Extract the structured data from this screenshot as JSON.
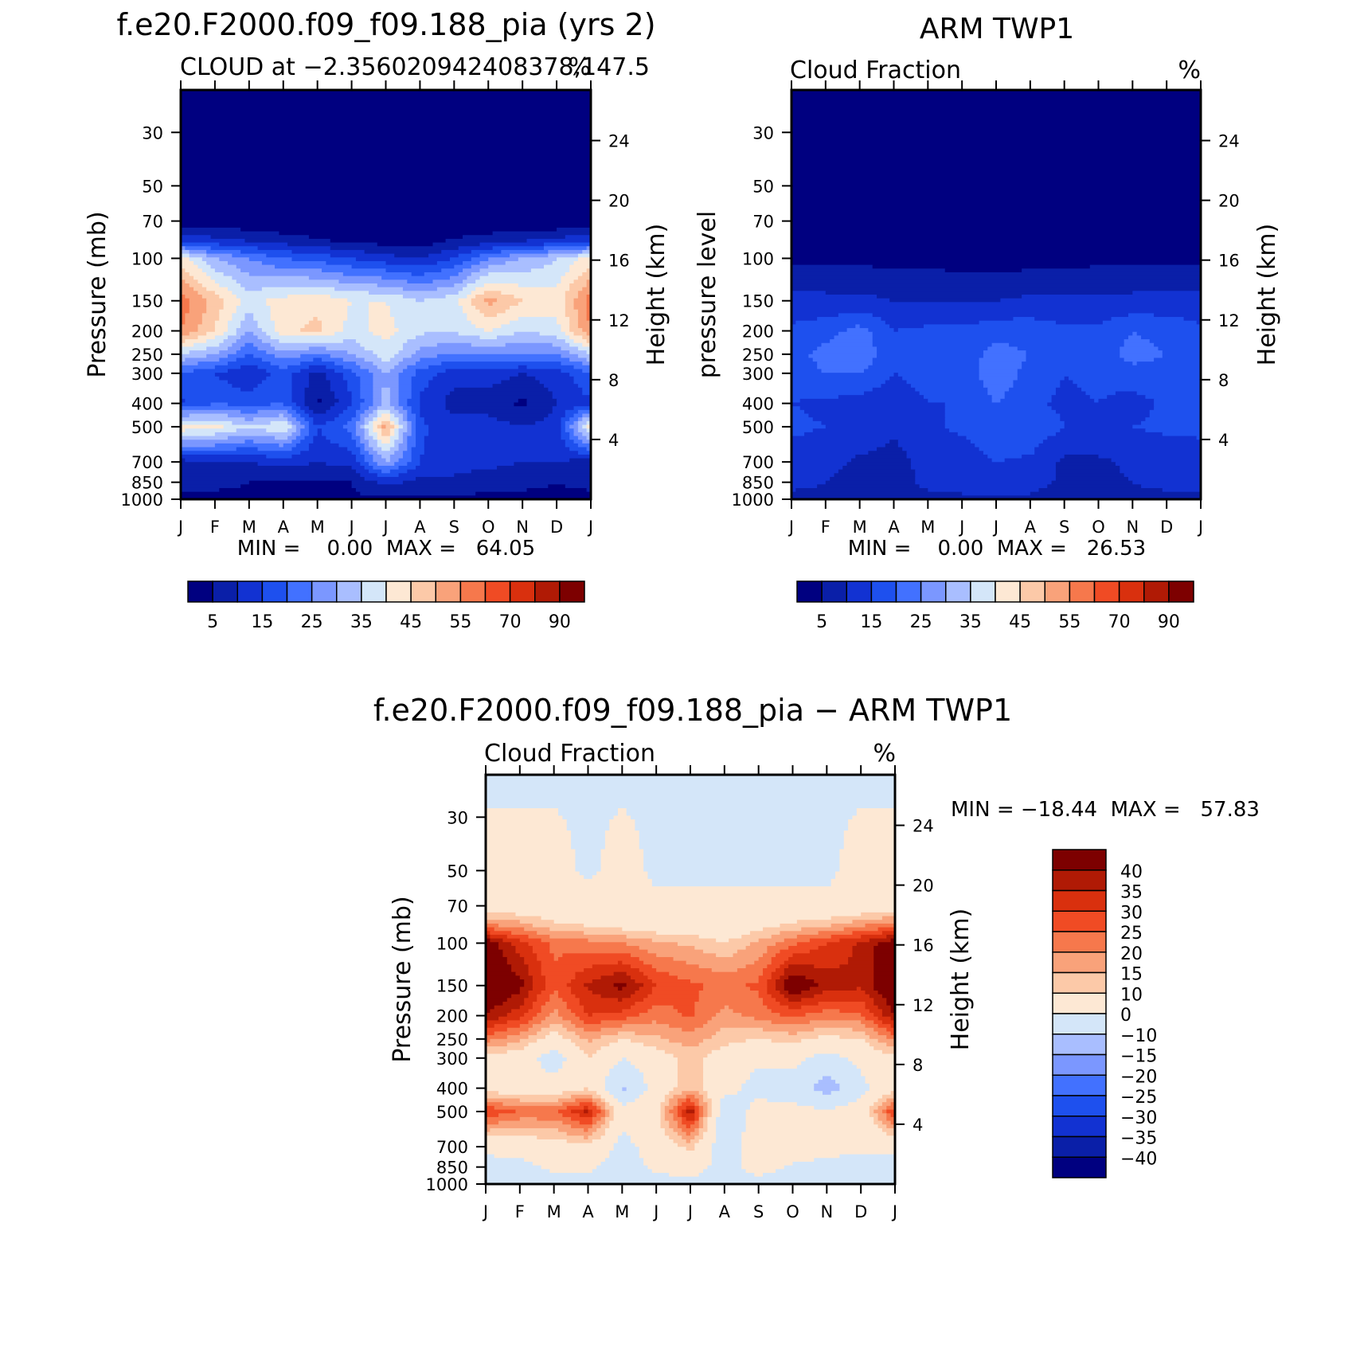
{
  "colors": {
    "seq": [
      "#000080",
      "#0a1fa8",
      "#1232d2",
      "#1e50ee",
      "#4271ff",
      "#7b97ff",
      "#a9beff",
      "#d4e6f9",
      "#fde8d4",
      "#fcc9a8",
      "#f9a27a",
      "#f6784c",
      "#f04b24",
      "#d9300e",
      "#b01a05",
      "#7d0000"
    ],
    "diff": [
      "#000080",
      "#0a1fa8",
      "#1232d2",
      "#1e50ee",
      "#4271ff",
      "#7b97ff",
      "#a9beff",
      "#d4e6f9",
      "#fde8d4",
      "#fcc9a8",
      "#f9a27a",
      "#f6784c",
      "#f04b24",
      "#d9300e",
      "#b01a05",
      "#7d0000"
    ]
  },
  "chart_data": [
    {
      "id": "model",
      "type": "heatmap",
      "title": "f.e20.F2000.f09_f09.188_pia (yrs 2)",
      "left_string": "CLOUD at −2.356020942408378,147.5",
      "right_string": "%",
      "xlabel": "",
      "ylabel": "Pressure (mb)",
      "ylabel_right": "Height (km)",
      "x_ticks": [
        "J",
        "F",
        "M",
        "A",
        "M",
        "J",
        "J",
        "A",
        "S",
        "O",
        "N",
        "D",
        "J"
      ],
      "y_ticks": [
        "30",
        "50",
        "70",
        "100",
        "150",
        "200",
        "250",
        "300",
        "400",
        "500",
        "700",
        "850",
        "1000"
      ],
      "y_tick_values": [
        30,
        50,
        70,
        100,
        150,
        200,
        250,
        300,
        400,
        500,
        700,
        850,
        1000
      ],
      "right_ticks": [
        "24",
        "20",
        "16",
        "12",
        "8",
        "4"
      ],
      "right_tick_values": [
        24,
        20,
        16,
        12,
        8,
        4
      ],
      "ylim": [
        20,
        1000
      ],
      "stats": "MIN =    0.00  MAX =   64.05",
      "min": 0.0,
      "max": 64.05,
      "levels": [
        5,
        10,
        15,
        20,
        25,
        30,
        35,
        40,
        45,
        50,
        55,
        60,
        70,
        80,
        90
      ],
      "label_levels": [
        "5",
        "15",
        "25",
        "35",
        "45",
        "55",
        "70",
        "90"
      ],
      "label_level_values": [
        5,
        15,
        25,
        35,
        45,
        55,
        70,
        90
      ],
      "grid": {
        "p": [
          20,
          50,
          70,
          85,
          100,
          150,
          200,
          250,
          300,
          400,
          500,
          700,
          850,
          1000
        ],
        "cols": [
          "J",
          "F",
          "M",
          "A",
          "M",
          "J",
          "J",
          "A",
          "S",
          "O",
          "N",
          "D",
          "J"
        ],
        "z": [
          [
            0,
            0,
            0,
            0,
            0,
            0,
            0,
            0,
            0,
            0,
            0,
            0,
            0
          ],
          [
            0,
            0,
            0,
            0,
            0,
            0,
            0,
            0,
            0,
            0,
            0,
            0,
            0
          ],
          [
            2,
            1,
            1,
            0,
            0,
            0,
            0,
            0,
            0,
            0,
            0,
            0,
            2
          ],
          [
            15,
            12,
            10,
            8,
            6,
            4,
            3,
            2,
            6,
            8,
            10,
            12,
            15
          ],
          [
            42,
            30,
            25,
            20,
            18,
            15,
            12,
            10,
            15,
            25,
            30,
            35,
            42
          ],
          [
            58,
            48,
            38,
            42,
            44,
            40,
            40,
            35,
            38,
            52,
            45,
            42,
            58
          ],
          [
            55,
            45,
            30,
            44,
            46,
            38,
            42,
            36,
            36,
            40,
            35,
            38,
            55
          ],
          [
            35,
            30,
            20,
            28,
            24,
            30,
            38,
            28,
            24,
            25,
            25,
            25,
            35
          ],
          [
            20,
            15,
            10,
            18,
            8,
            18,
            30,
            18,
            12,
            12,
            10,
            12,
            20
          ],
          [
            14,
            20,
            18,
            20,
            4,
            14,
            32,
            14,
            8,
            8,
            4,
            10,
            14
          ],
          [
            44,
            42,
            35,
            40,
            15,
            22,
            52,
            16,
            12,
            12,
            10,
            12,
            44
          ],
          [
            8,
            10,
            10,
            12,
            10,
            12,
            30,
            15,
            12,
            12,
            10,
            10,
            8
          ],
          [
            6,
            6,
            5,
            5,
            4,
            5,
            12,
            8,
            9,
            6,
            6,
            5,
            6
          ],
          [
            4,
            4,
            4,
            4,
            4,
            4,
            4,
            4,
            4,
            4,
            4,
            4,
            4
          ]
        ]
      }
    },
    {
      "id": "obs",
      "type": "heatmap",
      "title": "ARM TWP1",
      "left_string": "Cloud Fraction",
      "right_string": "%",
      "xlabel": "",
      "ylabel": "pressure level",
      "ylabel_right": "Height (km)",
      "x_ticks": [
        "J",
        "F",
        "M",
        "A",
        "M",
        "J",
        "J",
        "A",
        "S",
        "O",
        "N",
        "D",
        "J"
      ],
      "y_ticks": [
        "30",
        "50",
        "70",
        "100",
        "150",
        "200",
        "250",
        "300",
        "400",
        "500",
        "700",
        "850",
        "1000"
      ],
      "y_tick_values": [
        30,
        50,
        70,
        100,
        150,
        200,
        250,
        300,
        400,
        500,
        700,
        850,
        1000
      ],
      "right_ticks": [
        "24",
        "20",
        "16",
        "12",
        "8",
        "4"
      ],
      "right_tick_values": [
        24,
        20,
        16,
        12,
        8,
        4
      ],
      "ylim": [
        20,
        1000
      ],
      "stats": "MIN =    0.00  MAX =   26.53",
      "min": 0.0,
      "max": 26.53,
      "levels": [
        5,
        10,
        15,
        20,
        25,
        30,
        35,
        40,
        45,
        50,
        55,
        60,
        70,
        80,
        90
      ],
      "label_levels": [
        "5",
        "15",
        "25",
        "35",
        "45",
        "55",
        "70",
        "90"
      ],
      "label_level_values": [
        5,
        15,
        25,
        35,
        45,
        55,
        70,
        90
      ],
      "grid": {
        "p": [
          20,
          50,
          70,
          100,
          120,
          150,
          200,
          250,
          300,
          400,
          500,
          700,
          850,
          1000
        ],
        "cols": [
          "J",
          "F",
          "M",
          "A",
          "M",
          "J",
          "J",
          "A",
          "S",
          "O",
          "N",
          "D",
          "J"
        ],
        "z": [
          [
            0,
            0,
            0,
            0,
            0,
            0,
            0,
            0,
            0,
            0,
            0,
            0,
            0
          ],
          [
            0,
            0,
            0,
            0,
            0,
            0,
            0,
            0,
            0,
            0,
            0,
            0,
            0
          ],
          [
            0,
            0,
            0,
            0,
            0,
            0,
            0,
            0,
            0,
            0,
            0,
            0,
            0
          ],
          [
            4,
            3,
            3,
            3,
            3,
            2,
            2,
            2,
            2,
            3,
            3,
            3,
            4
          ],
          [
            8,
            8,
            8,
            7,
            7,
            6,
            6,
            7,
            7,
            8,
            8,
            8,
            8
          ],
          [
            12,
            11,
            11,
            10,
            10,
            10,
            10,
            11,
            11,
            11,
            11,
            12,
            12
          ],
          [
            16,
            18,
            22,
            15,
            16,
            16,
            18,
            18,
            16,
            16,
            20,
            18,
            16
          ],
          [
            18,
            22,
            24,
            16,
            18,
            17,
            22,
            20,
            17,
            17,
            22,
            20,
            18
          ],
          [
            17,
            20,
            20,
            15,
            17,
            16,
            24,
            18,
            15,
            16,
            18,
            18,
            17
          ],
          [
            15,
            14,
            13,
            12,
            15,
            15,
            20,
            16,
            14,
            15,
            13,
            16,
            15
          ],
          [
            16,
            15,
            14,
            11,
            14,
            16,
            20,
            19,
            15,
            15,
            15,
            16,
            16
          ],
          [
            13,
            12,
            9,
            8,
            12,
            12,
            15,
            14,
            9,
            9,
            11,
            12,
            13
          ],
          [
            11,
            10,
            8,
            8,
            11,
            12,
            13,
            12,
            9,
            9,
            10,
            11,
            11
          ],
          [
            9,
            9,
            8,
            8,
            9,
            9,
            9,
            9,
            8,
            8,
            9,
            9,
            9
          ]
        ]
      }
    },
    {
      "id": "diff",
      "type": "heatmap",
      "title": "f.e20.F2000.f09_f09.188_pia − ARM TWP1",
      "left_string": "Cloud Fraction",
      "right_string": "%",
      "xlabel": "",
      "ylabel": "Pressure (mb)",
      "ylabel_right": "Height (km)",
      "x_ticks": [
        "J",
        "F",
        "M",
        "A",
        "M",
        "J",
        "J",
        "A",
        "S",
        "O",
        "N",
        "D",
        "J"
      ],
      "y_ticks": [
        "30",
        "50",
        "70",
        "100",
        "150",
        "200",
        "250",
        "300",
        "400",
        "500",
        "700",
        "850",
        "1000"
      ],
      "y_tick_values": [
        30,
        50,
        70,
        100,
        150,
        200,
        250,
        300,
        400,
        500,
        700,
        850,
        1000
      ],
      "right_ticks": [
        "24",
        "20",
        "16",
        "12",
        "8",
        "4"
      ],
      "right_tick_values": [
        24,
        20,
        16,
        12,
        8,
        4
      ],
      "ylim": [
        20,
        1000
      ],
      "stats": "MIN = −18.44  MAX =   57.83",
      "min": -18.44,
      "max": 57.83,
      "levels": [
        -40,
        -35,
        -30,
        -25,
        -20,
        -15,
        -10,
        0,
        10,
        15,
        20,
        25,
        30,
        35,
        40
      ],
      "label_levels": [
        "40",
        "35",
        "30",
        "25",
        "20",
        "15",
        "10",
        "0",
        "−10",
        "−15",
        "−20",
        "−25",
        "−30",
        "−35",
        "−40"
      ],
      "label_level_values": [
        40,
        35,
        30,
        25,
        20,
        15,
        10,
        0,
        -10,
        -15,
        -20,
        -25,
        -30,
        -35,
        -40
      ],
      "grid": {
        "p": [
          20,
          50,
          70,
          85,
          100,
          150,
          200,
          250,
          300,
          400,
          500,
          700,
          850,
          1000
        ],
        "cols": [
          "J",
          "F",
          "M",
          "A",
          "M",
          "J",
          "J",
          "A",
          "S",
          "O",
          "N",
          "D",
          "J"
        ],
        "z": [
          [
            -1,
            -1,
            -1,
            -1,
            -1,
            -1,
            -1,
            -1,
            -1,
            -1,
            -1,
            -1,
            -1
          ],
          [
            2,
            2,
            2,
            -1,
            2,
            -1,
            -1,
            -1,
            -1,
            -1,
            -1,
            2,
            2
          ],
          [
            4,
            4,
            3,
            3,
            2,
            1,
            1,
            1,
            1,
            1,
            1,
            3,
            4
          ],
          [
            22,
            18,
            12,
            10,
            8,
            6,
            5,
            4,
            8,
            12,
            15,
            20,
            24
          ],
          [
            45,
            32,
            24,
            22,
            20,
            16,
            14,
            10,
            16,
            24,
            30,
            36,
            45
          ],
          [
            48,
            42,
            26,
            36,
            42,
            30,
            26,
            24,
            26,
            46,
            38,
            36,
            48
          ],
          [
            40,
            32,
            18,
            30,
            28,
            22,
            26,
            18,
            22,
            26,
            22,
            24,
            40
          ],
          [
            22,
            16,
            6,
            16,
            10,
            14,
            18,
            12,
            10,
            12,
            8,
            10,
            22
          ],
          [
            8,
            5,
            -5,
            10,
            0,
            6,
            12,
            6,
            2,
            2,
            -3,
            2,
            8
          ],
          [
            6,
            5,
            4,
            10,
            -12,
            4,
            14,
            4,
            -4,
            -3,
            -15,
            -2,
            6
          ],
          [
            30,
            24,
            24,
            36,
            4,
            8,
            38,
            -8,
            4,
            2,
            2,
            4,
            30
          ],
          [
            2,
            4,
            6,
            8,
            -3,
            4,
            12,
            -6,
            6,
            4,
            2,
            2,
            2
          ],
          [
            -3,
            -3,
            2,
            2,
            -5,
            2,
            5,
            -4,
            4,
            -1,
            -2,
            -3,
            -3
          ],
          [
            -4,
            -4,
            -4,
            -4,
            -4,
            -4,
            -4,
            -4,
            -4,
            -4,
            -4,
            -4,
            -4
          ]
        ]
      }
    }
  ]
}
